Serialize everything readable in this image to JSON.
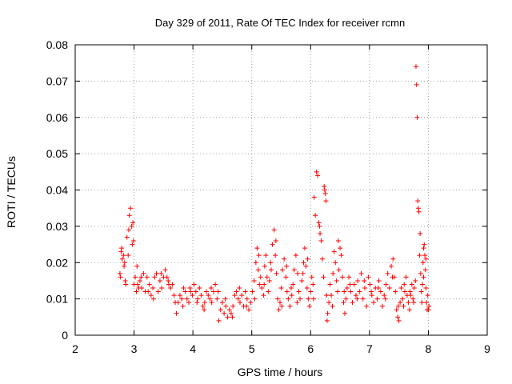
{
  "chart_data": {
    "type": "scatter",
    "title": "Day 329 of 2011, Rate Of TEC Index for receiver rcmn",
    "xlabel": "GPS time / hours",
    "ylabel": "ROTI / TECUs",
    "xlim": [
      2,
      9
    ],
    "ylim": [
      0,
      0.08
    ],
    "xticks": [
      "2",
      "3",
      "4",
      "5",
      "6",
      "7",
      "8",
      "9"
    ],
    "yticks": [
      "0",
      "0.01",
      "0.02",
      "0.03",
      "0.04",
      "0.05",
      "0.06",
      "0.07",
      "0.08"
    ],
    "grid": true,
    "marker": "+",
    "color": "#ff0000",
    "series": [
      {
        "points": [
          [
            2.76,
            0.017
          ],
          [
            2.77,
            0.016
          ],
          [
            2.79,
            0.024
          ],
          [
            2.8,
            0.021
          ],
          [
            2.82,
            0.022
          ],
          [
            2.83,
            0.019
          ],
          [
            2.85,
            0.015
          ],
          [
            2.86,
            0.014
          ],
          [
            2.88,
            0.027
          ],
          [
            2.9,
            0.022
          ],
          [
            2.91,
            0.029
          ],
          [
            2.92,
            0.033
          ],
          [
            2.94,
            0.035
          ],
          [
            2.96,
            0.03
          ],
          [
            2.97,
            0.025
          ],
          [
            2.99,
            0.026
          ],
          [
            3.0,
            0.014
          ],
          [
            3.02,
            0.016
          ],
          [
            3.04,
            0.012
          ],
          [
            3.06,
            0.014
          ],
          [
            3.08,
            0.013
          ],
          [
            3.1,
            0.015
          ],
          [
            3.13,
            0.013
          ],
          [
            3.16,
            0.017
          ],
          [
            3.19,
            0.012
          ],
          [
            3.22,
            0.016
          ],
          [
            3.26,
            0.014
          ],
          [
            3.29,
            0.011
          ],
          [
            3.32,
            0.013
          ],
          [
            3.35,
            0.016
          ],
          [
            3.38,
            0.017
          ],
          [
            3.41,
            0.012
          ],
          [
            3.44,
            0.015
          ],
          [
            3.47,
            0.013
          ],
          [
            3.5,
            0.016
          ],
          [
            3.53,
            0.018
          ],
          [
            3.56,
            0.016
          ],
          [
            3.59,
            0.014
          ],
          [
            3.62,
            0.013
          ],
          [
            3.65,
            0.014
          ],
          [
            3.68,
            0.011
          ],
          [
            3.72,
            0.006
          ],
          [
            3.75,
            0.009
          ],
          [
            3.78,
            0.011
          ],
          [
            3.81,
            0.01
          ],
          [
            3.84,
            0.013
          ],
          [
            3.87,
            0.012
          ],
          [
            3.9,
            0.01
          ],
          [
            3.93,
            0.009
          ],
          [
            3.96,
            0.012
          ],
          [
            3.99,
            0.011
          ],
          [
            4.02,
            0.014
          ],
          [
            4.05,
            0.012
          ],
          [
            4.08,
            0.01
          ],
          [
            4.11,
            0.013
          ],
          [
            4.14,
            0.011
          ],
          [
            4.17,
            0.008
          ],
          [
            4.2,
            0.009
          ],
          [
            4.23,
            0.012
          ],
          [
            4.26,
            0.011
          ],
          [
            4.29,
            0.01
          ],
          [
            4.32,
            0.009
          ],
          [
            4.35,
            0.012
          ],
          [
            4.38,
            0.014
          ],
          [
            4.41,
            0.01
          ],
          [
            4.44,
            0.004
          ],
          [
            4.47,
            0.007
          ],
          [
            4.5,
            0.009
          ],
          [
            4.53,
            0.006
          ],
          [
            4.56,
            0.008
          ],
          [
            4.59,
            0.005
          ],
          [
            4.62,
            0.007
          ],
          [
            4.65,
            0.006
          ],
          [
            4.68,
            0.008
          ],
          [
            4.71,
            0.011
          ],
          [
            4.74,
            0.012
          ],
          [
            4.77,
            0.01
          ],
          [
            4.8,
            0.009
          ],
          [
            4.83,
            0.011
          ],
          [
            4.86,
            0.008
          ],
          [
            4.89,
            0.012
          ],
          [
            4.92,
            0.01
          ],
          [
            4.95,
            0.007
          ],
          [
            4.98,
            0.009
          ],
          [
            5.01,
            0.012
          ],
          [
            5.04,
            0.015
          ],
          [
            5.07,
            0.02
          ],
          [
            5.09,
            0.024
          ],
          [
            5.11,
            0.018
          ],
          [
            5.13,
            0.014
          ],
          [
            5.15,
            0.016
          ],
          [
            5.17,
            0.013
          ],
          [
            5.2,
            0.011
          ],
          [
            5.22,
            0.019
          ],
          [
            5.24,
            0.022
          ],
          [
            5.26,
            0.016
          ],
          [
            5.28,
            0.012
          ],
          [
            5.3,
            0.015
          ],
          [
            5.32,
            0.02
          ],
          [
            5.35,
            0.025
          ],
          [
            5.38,
            0.029
          ],
          [
            5.4,
            0.022
          ],
          [
            5.42,
            0.017
          ],
          [
            5.44,
            0.01
          ],
          [
            5.46,
            0.007
          ],
          [
            5.48,
            0.009
          ],
          [
            5.5,
            0.013
          ],
          [
            5.52,
            0.018
          ],
          [
            5.55,
            0.021
          ],
          [
            5.58,
            0.016
          ],
          [
            5.6,
            0.012
          ],
          [
            5.62,
            0.01
          ],
          [
            5.65,
            0.008
          ],
          [
            5.68,
            0.011
          ],
          [
            5.7,
            0.014
          ],
          [
            5.72,
            0.018
          ],
          [
            5.75,
            0.022
          ],
          [
            5.78,
            0.017
          ],
          [
            5.8,
            0.012
          ],
          [
            5.82,
            0.01
          ],
          [
            5.85,
            0.015
          ],
          [
            5.88,
            0.02
          ],
          [
            5.9,
            0.024
          ],
          [
            5.92,
            0.019
          ],
          [
            5.94,
            0.013
          ],
          [
            5.96,
            0.01
          ],
          [
            5.98,
            0.008
          ],
          [
            6.0,
            0.012
          ],
          [
            6.02,
            0.016
          ],
          [
            6.04,
            0.014
          ],
          [
            6.06,
            0.038
          ],
          [
            6.08,
            0.033
          ],
          [
            6.1,
            0.045
          ],
          [
            6.12,
            0.044
          ],
          [
            6.14,
            0.031
          ],
          [
            6.16,
            0.028
          ],
          [
            6.18,
            0.026
          ],
          [
            6.2,
            0.021
          ],
          [
            6.22,
            0.016
          ],
          [
            6.23,
            0.041
          ],
          [
            6.24,
            0.04
          ],
          [
            6.25,
            0.039
          ],
          [
            6.26,
            0.037
          ],
          [
            6.27,
            0.011
          ],
          [
            6.29,
            0.006
          ],
          [
            6.31,
            0.009
          ],
          [
            6.33,
            0.014
          ],
          [
            6.35,
            0.011
          ],
          [
            6.38,
            0.017
          ],
          [
            6.4,
            0.023
          ],
          [
            6.42,
            0.02
          ],
          [
            6.44,
            0.015
          ],
          [
            6.46,
            0.012
          ],
          [
            6.48,
            0.018
          ],
          [
            6.5,
            0.024
          ],
          [
            6.52,
            0.022
          ],
          [
            6.54,
            0.016
          ],
          [
            6.56,
            0.009
          ],
          [
            6.58,
            0.006
          ],
          [
            6.6,
            0.01
          ],
          [
            6.62,
            0.013
          ],
          [
            6.65,
            0.016
          ],
          [
            6.68,
            0.012
          ],
          [
            6.71,
            0.009
          ],
          [
            6.74,
            0.014
          ],
          [
            6.77,
            0.011
          ],
          [
            6.8,
            0.015
          ],
          [
            6.83,
            0.012
          ],
          [
            6.86,
            0.017
          ],
          [
            6.89,
            0.01
          ],
          [
            6.92,
            0.013
          ],
          [
            6.95,
            0.008
          ],
          [
            6.98,
            0.016
          ],
          [
            7.01,
            0.014
          ],
          [
            7.04,
            0.011
          ],
          [
            7.07,
            0.009
          ],
          [
            7.1,
            0.013
          ],
          [
            7.13,
            0.01
          ],
          [
            7.16,
            0.015
          ],
          [
            7.19,
            0.012
          ],
          [
            7.22,
            0.008
          ],
          [
            7.25,
            0.011
          ],
          [
            7.28,
            0.014
          ],
          [
            7.31,
            0.017
          ],
          [
            7.34,
            0.013
          ],
          [
            7.37,
            0.019
          ],
          [
            7.4,
            0.021
          ],
          [
            7.42,
            0.016
          ],
          [
            7.44,
            0.012
          ],
          [
            7.46,
            0.007
          ],
          [
            7.48,
            0.005
          ],
          [
            7.5,
            0.004
          ],
          [
            7.52,
            0.009
          ],
          [
            7.54,
            0.013
          ],
          [
            7.56,
            0.01
          ],
          [
            7.58,
            0.008
          ],
          [
            7.6,
            0.012
          ],
          [
            7.62,
            0.016
          ],
          [
            7.64,
            0.011
          ],
          [
            7.66,
            0.009
          ],
          [
            7.68,
            0.007
          ],
          [
            7.7,
            0.011
          ],
          [
            7.72,
            0.014
          ],
          [
            7.74,
            0.01
          ],
          [
            7.76,
            0.013
          ],
          [
            7.78,
            0.015
          ],
          [
            7.79,
            0.074
          ],
          [
            7.8,
            0.069
          ],
          [
            7.81,
            0.06
          ],
          [
            7.82,
            0.037
          ],
          [
            7.83,
            0.035
          ],
          [
            7.84,
            0.034
          ],
          [
            7.85,
            0.022
          ],
          [
            7.86,
            0.028
          ],
          [
            7.87,
            0.017
          ],
          [
            7.88,
            0.012
          ],
          [
            7.89,
            0.009
          ],
          [
            7.9,
            0.014
          ],
          [
            7.91,
            0.02
          ],
          [
            7.92,
            0.024
          ],
          [
            7.93,
            0.025
          ],
          [
            7.94,
            0.022
          ],
          [
            7.95,
            0.018
          ],
          [
            7.96,
            0.013
          ],
          [
            7.97,
            0.009
          ],
          [
            7.98,
            0.007
          ],
          [
            7.99,
            0.011
          ],
          [
            8.0,
            0.007
          ],
          [
            8.01,
            0.008
          ],
          [
            2.78,
            0.023
          ],
          [
            2.84,
            0.02
          ],
          [
            2.98,
            0.031
          ],
          [
            3.05,
            0.019
          ],
          [
            3.12,
            0.016
          ],
          [
            3.24,
            0.012
          ],
          [
            3.33,
            0.01
          ],
          [
            3.46,
            0.017
          ],
          [
            3.58,
            0.015
          ],
          [
            3.7,
            0.009
          ],
          [
            3.83,
            0.008
          ],
          [
            3.95,
            0.013
          ],
          [
            4.07,
            0.009
          ],
          [
            4.19,
            0.007
          ],
          [
            4.31,
            0.013
          ],
          [
            4.43,
            0.012
          ],
          [
            4.55,
            0.01
          ],
          [
            4.67,
            0.005
          ],
          [
            4.79,
            0.013
          ],
          [
            4.91,
            0.008
          ],
          [
            5.05,
            0.01
          ],
          [
            5.12,
            0.022
          ],
          [
            5.21,
            0.014
          ],
          [
            5.33,
            0.018
          ],
          [
            5.41,
            0.026
          ],
          [
            5.51,
            0.008
          ],
          [
            5.59,
            0.019
          ],
          [
            5.67,
            0.013
          ],
          [
            5.77,
            0.009
          ],
          [
            5.87,
            0.017
          ],
          [
            5.95,
            0.021
          ],
          [
            6.05,
            0.01
          ],
          [
            6.15,
            0.03
          ],
          [
            6.28,
            0.004
          ],
          [
            6.37,
            0.008
          ],
          [
            6.47,
            0.026
          ],
          [
            6.57,
            0.012
          ],
          [
            6.67,
            0.014
          ],
          [
            6.79,
            0.01
          ],
          [
            6.91,
            0.015
          ],
          [
            7.03,
            0.012
          ],
          [
            7.15,
            0.013
          ],
          [
            7.27,
            0.01
          ],
          [
            7.39,
            0.016
          ],
          [
            7.49,
            0.008
          ],
          [
            7.59,
            0.014
          ],
          [
            7.69,
            0.012
          ],
          [
            7.75,
            0.009
          ],
          [
            7.92,
            0.016
          ],
          [
            7.96,
            0.021
          ]
        ]
      }
    ]
  }
}
